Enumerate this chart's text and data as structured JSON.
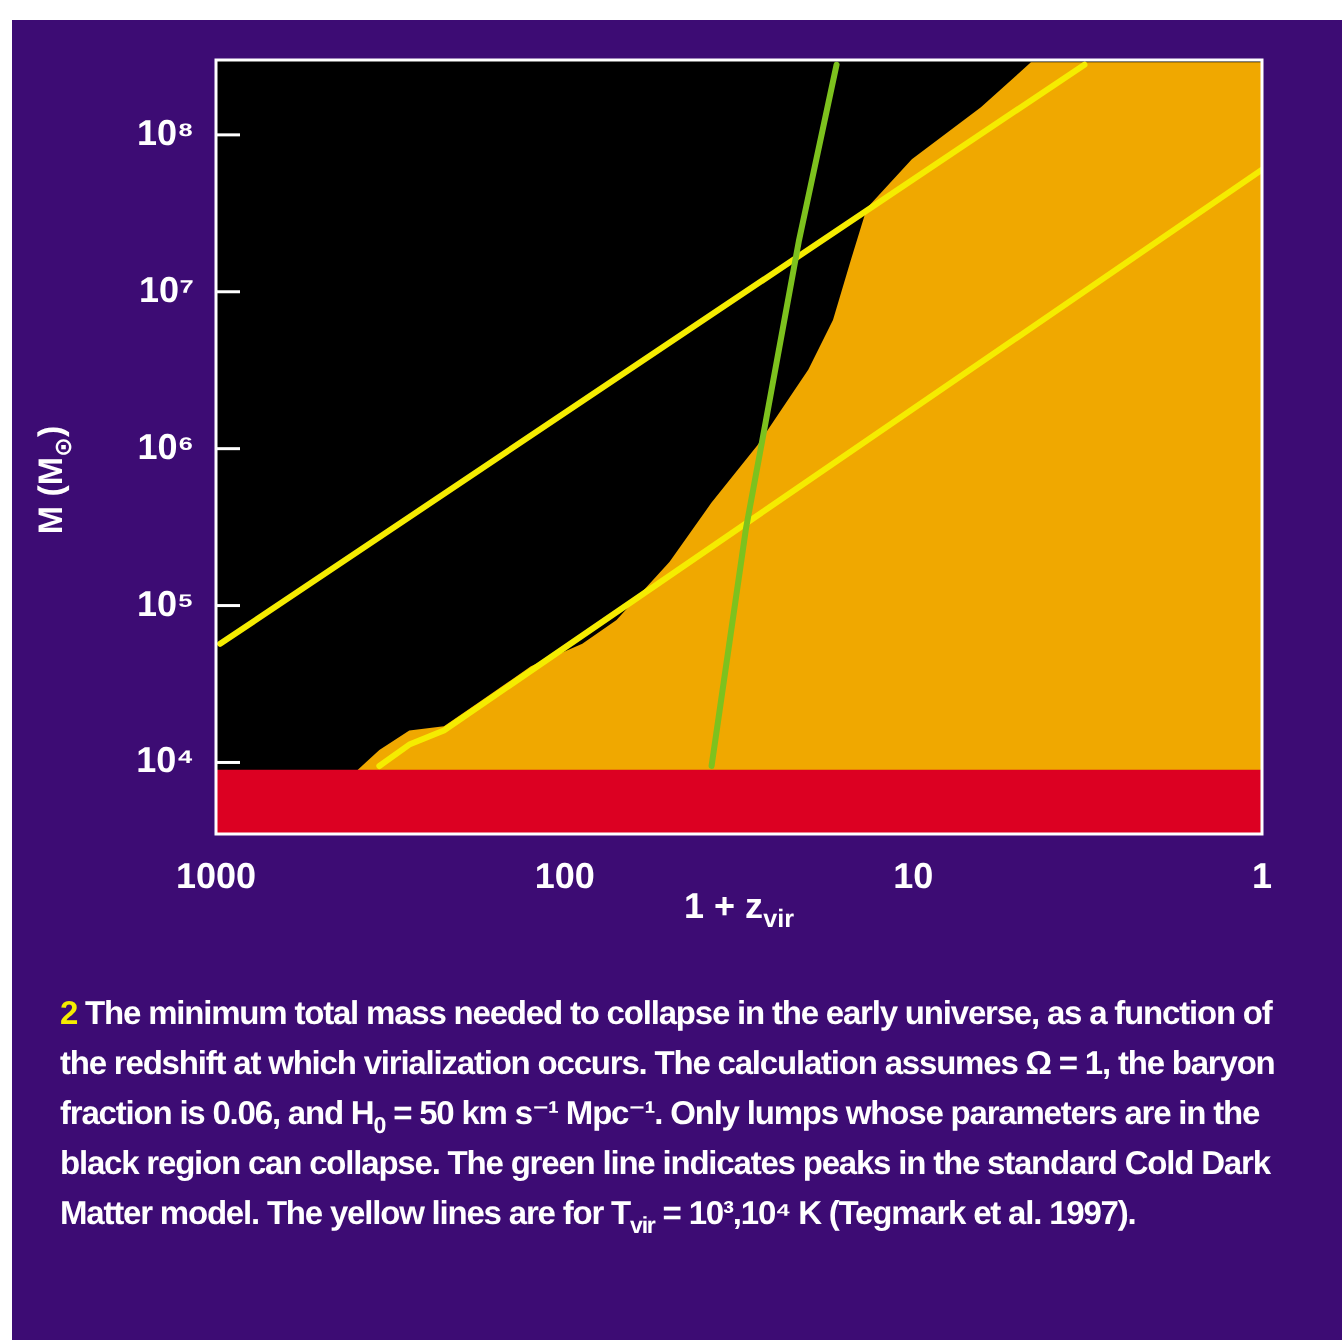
{
  "chart_data": {
    "type": "line",
    "xlabel": "1 + z$_{vir}$",
    "ylabel": "M (M$_{⊙}$)",
    "log": "xy",
    "xlim": [
      1000,
      1
    ],
    "xticks": [
      1000,
      100,
      10,
      1
    ],
    "ylim": [
      3500,
      300000000
    ],
    "yticks": [
      {
        "value": 10000,
        "label": "10⁴"
      },
      {
        "value": 100000,
        "label": "10⁵"
      },
      {
        "value": 1000000,
        "label": "10⁶"
      },
      {
        "value": 10000000,
        "label": "10⁷"
      },
      {
        "value": 100000000,
        "label": "10⁸"
      }
    ],
    "series": [
      {
        "type": "area",
        "color": "#f0a800",
        "x": [
          1000,
          394,
          340,
          279,
          222,
          177,
          125,
          89,
          71,
          50,
          38,
          28,
          20,
          17,
          15.1,
          13.6,
          10.1,
          6.4,
          4.6,
          1
        ],
        "values": [
          8900,
          8900,
          12000,
          16000,
          17000,
          24000,
          41000,
          57000,
          81000,
          190000,
          450000,
          1050000,
          3200000,
          6600000,
          16000000,
          34000000,
          70000000,
          150000000,
          290000000,
          290000000
        ]
      },
      {
        "color": "#7dc21e",
        "x": [
          37.9,
          30.2,
          26.8,
          21.3,
          16.6
        ],
        "values": [
          9500,
          310000,
          1300000,
          21000000,
          280000000
        ]
      },
      {
        "color": "#f5ec00",
        "x": [
          973,
          3.23
        ],
        "values": [
          57000,
          280000000
        ]
      },
      {
        "color": "#f5ec00",
        "x": [
          340,
          279,
          222,
          1
        ],
        "values": [
          9500,
          13000,
          16000,
          60000000
        ]
      }
    ],
    "bands": [
      {
        "axis": "y",
        "from": 3500,
        "to": 9000,
        "color": "#dc0022"
      }
    ],
    "annotations": [
      "2 The minimum total mass needed to collapse in the early universe, as a function of the redshift at which virialization occurs. The calculation assumes Ω = 1, the baryon fraction is 0.06, and H$_{0}$ = 50 km s⁻¹ Mpc⁻¹. Only lumps whose parameters are in the black region can collapse. The green line indicates peaks in the standard Cold Dark Matter model. The yellow lines are for T$_{vir}$ = 10³,10⁴ K (Tegmark et al. 1997)."
    ]
  }
}
